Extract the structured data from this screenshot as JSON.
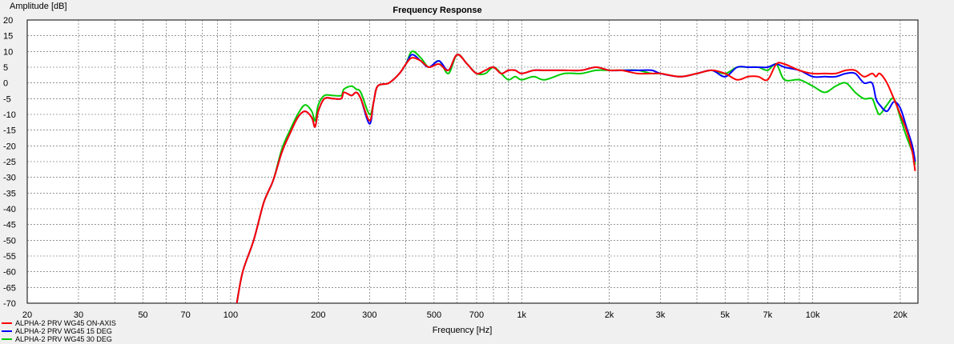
{
  "chart_data": {
    "type": "line",
    "title": "Frequency Response",
    "xlabel": "Frequency [Hz]",
    "ylabel": "Amplitude [dB]",
    "x_scale": "log",
    "xlim": [
      20,
      23000
    ],
    "ylim": [
      -70,
      20
    ],
    "grid": true,
    "legend_position": "bottom-left",
    "x_ticks": [
      {
        "value": 20,
        "label": "20"
      },
      {
        "value": 30,
        "label": "30"
      },
      {
        "value": 50,
        "label": "50"
      },
      {
        "value": 70,
        "label": "70"
      },
      {
        "value": 100,
        "label": "100"
      },
      {
        "value": 200,
        "label": "200"
      },
      {
        "value": 300,
        "label": "300"
      },
      {
        "value": 500,
        "label": "500"
      },
      {
        "value": 700,
        "label": "700"
      },
      {
        "value": 1000,
        "label": "1k"
      },
      {
        "value": 2000,
        "label": "2k"
      },
      {
        "value": 3000,
        "label": "3k"
      },
      {
        "value": 5000,
        "label": "5k"
      },
      {
        "value": 7000,
        "label": "7k"
      },
      {
        "value": 10000,
        "label": "10k"
      },
      {
        "value": 20000,
        "label": "20k"
      }
    ],
    "y_ticks": [
      20,
      15,
      10,
      5,
      0,
      -5,
      -10,
      -15,
      -20,
      -25,
      -30,
      -35,
      -40,
      -45,
      -50,
      -55,
      -60,
      -65,
      -70
    ],
    "series": [
      {
        "name": "ALPHA-2 PRV WG45 ON-AXIS",
        "color": "#ff0000",
        "points": [
          [
            105,
            -70
          ],
          [
            110,
            -60
          ],
          [
            120,
            -50
          ],
          [
            130,
            -38
          ],
          [
            140,
            -31
          ],
          [
            150,
            -22
          ],
          [
            160,
            -16
          ],
          [
            170,
            -11
          ],
          [
            180,
            -9
          ],
          [
            190,
            -11
          ],
          [
            195,
            -14
          ],
          [
            200,
            -9
          ],
          [
            210,
            -5
          ],
          [
            225,
            -5
          ],
          [
            240,
            -5
          ],
          [
            245,
            -3
          ],
          [
            260,
            -4
          ],
          [
            270,
            -3
          ],
          [
            280,
            -5
          ],
          [
            300,
            -12
          ],
          [
            310,
            -6
          ],
          [
            320,
            -1
          ],
          [
            350,
            0
          ],
          [
            380,
            3
          ],
          [
            400,
            6
          ],
          [
            420,
            8
          ],
          [
            450,
            7
          ],
          [
            480,
            5
          ],
          [
            520,
            6
          ],
          [
            560,
            4
          ],
          [
            600,
            9
          ],
          [
            650,
            6
          ],
          [
            700,
            3
          ],
          [
            750,
            4
          ],
          [
            800,
            5
          ],
          [
            850,
            3
          ],
          [
            900,
            4
          ],
          [
            950,
            4
          ],
          [
            1000,
            3
          ],
          [
            1100,
            4
          ],
          [
            1200,
            4
          ],
          [
            1400,
            4
          ],
          [
            1600,
            4
          ],
          [
            1800,
            5
          ],
          [
            2000,
            4
          ],
          [
            2200,
            4
          ],
          [
            2500,
            3
          ],
          [
            2800,
            3
          ],
          [
            3000,
            3
          ],
          [
            3500,
            2
          ],
          [
            4000,
            3
          ],
          [
            4500,
            4
          ],
          [
            5000,
            3
          ],
          [
            5500,
            1
          ],
          [
            6000,
            2
          ],
          [
            6500,
            2
          ],
          [
            7000,
            1
          ],
          [
            7500,
            6
          ],
          [
            8000,
            6
          ],
          [
            9000,
            4
          ],
          [
            10000,
            3
          ],
          [
            11000,
            3
          ],
          [
            12000,
            3
          ],
          [
            13000,
            4
          ],
          [
            14000,
            4
          ],
          [
            15000,
            2
          ],
          [
            16000,
            3
          ],
          [
            16500,
            2
          ],
          [
            17000,
            3
          ],
          [
            18000,
            0
          ],
          [
            19000,
            -5
          ],
          [
            20000,
            -10
          ],
          [
            21000,
            -15
          ],
          [
            22000,
            -22
          ],
          [
            22500,
            -28
          ]
        ]
      },
      {
        "name": "ALPHA-2 PRV WG45 15 DEG",
        "color": "#0000ff",
        "points": [
          [
            105,
            -70
          ],
          [
            110,
            -60
          ],
          [
            120,
            -50
          ],
          [
            130,
            -38
          ],
          [
            140,
            -31
          ],
          [
            150,
            -22
          ],
          [
            160,
            -16
          ],
          [
            170,
            -11
          ],
          [
            180,
            -9
          ],
          [
            190,
            -11
          ],
          [
            195,
            -14
          ],
          [
            200,
            -9
          ],
          [
            210,
            -5
          ],
          [
            225,
            -5
          ],
          [
            240,
            -5
          ],
          [
            245,
            -3
          ],
          [
            260,
            -4
          ],
          [
            270,
            -3
          ],
          [
            280,
            -5
          ],
          [
            300,
            -13
          ],
          [
            310,
            -6
          ],
          [
            320,
            -1
          ],
          [
            350,
            0
          ],
          [
            380,
            3
          ],
          [
            400,
            6
          ],
          [
            420,
            9
          ],
          [
            450,
            7
          ],
          [
            480,
            5
          ],
          [
            520,
            7
          ],
          [
            560,
            4
          ],
          [
            600,
            9
          ],
          [
            650,
            6
          ],
          [
            700,
            3
          ],
          [
            750,
            4
          ],
          [
            800,
            5
          ],
          [
            850,
            3
          ],
          [
            900,
            4
          ],
          [
            950,
            4
          ],
          [
            1000,
            3
          ],
          [
            1100,
            4
          ],
          [
            1200,
            4
          ],
          [
            1400,
            4
          ],
          [
            1600,
            4
          ],
          [
            1800,
            5
          ],
          [
            2000,
            4
          ],
          [
            2200,
            4
          ],
          [
            2500,
            4
          ],
          [
            2800,
            4
          ],
          [
            3000,
            3
          ],
          [
            3500,
            2
          ],
          [
            4000,
            3
          ],
          [
            4500,
            4
          ],
          [
            5000,
            2
          ],
          [
            5500,
            5
          ],
          [
            6000,
            5
          ],
          [
            6500,
            5
          ],
          [
            7000,
            5
          ],
          [
            7500,
            6
          ],
          [
            8000,
            5
          ],
          [
            9000,
            4
          ],
          [
            10000,
            2
          ],
          [
            11000,
            2
          ],
          [
            12000,
            2
          ],
          [
            13000,
            3
          ],
          [
            14000,
            3
          ],
          [
            15000,
            0
          ],
          [
            16000,
            0
          ],
          [
            16500,
            -5
          ],
          [
            17000,
            -7
          ],
          [
            18000,
            -9
          ],
          [
            19000,
            -6
          ],
          [
            20000,
            -8
          ],
          [
            21000,
            -14
          ],
          [
            22000,
            -20
          ],
          [
            22500,
            -25
          ]
        ]
      },
      {
        "name": "ALPHA-2 PRV WG45 30 DEG",
        "color": "#00cc00",
        "points": [
          [
            105,
            -70
          ],
          [
            110,
            -60
          ],
          [
            120,
            -50
          ],
          [
            130,
            -38
          ],
          [
            140,
            -31
          ],
          [
            150,
            -21
          ],
          [
            160,
            -15
          ],
          [
            170,
            -10
          ],
          [
            180,
            -7
          ],
          [
            190,
            -9
          ],
          [
            195,
            -12
          ],
          [
            200,
            -7
          ],
          [
            210,
            -4
          ],
          [
            225,
            -4
          ],
          [
            240,
            -4
          ],
          [
            245,
            -2
          ],
          [
            260,
            -1
          ],
          [
            270,
            -2
          ],
          [
            280,
            -3
          ],
          [
            300,
            -10
          ],
          [
            310,
            -6
          ],
          [
            320,
            -1
          ],
          [
            350,
            0
          ],
          [
            380,
            3
          ],
          [
            400,
            6
          ],
          [
            420,
            10
          ],
          [
            450,
            8
          ],
          [
            480,
            5
          ],
          [
            520,
            7
          ],
          [
            560,
            3
          ],
          [
            600,
            9
          ],
          [
            650,
            6
          ],
          [
            700,
            3
          ],
          [
            750,
            3
          ],
          [
            800,
            5
          ],
          [
            850,
            3
          ],
          [
            900,
            1
          ],
          [
            950,
            2
          ],
          [
            1000,
            1
          ],
          [
            1100,
            2
          ],
          [
            1200,
            1
          ],
          [
            1400,
            3
          ],
          [
            1600,
            3
          ],
          [
            1800,
            4
          ],
          [
            2000,
            4
          ],
          [
            2200,
            4
          ],
          [
            2500,
            4
          ],
          [
            2800,
            3
          ],
          [
            3000,
            3
          ],
          [
            3500,
            2
          ],
          [
            4000,
            3
          ],
          [
            4500,
            4
          ],
          [
            5000,
            3
          ],
          [
            5500,
            5
          ],
          [
            6000,
            5
          ],
          [
            6500,
            5
          ],
          [
            7000,
            4
          ],
          [
            7500,
            6
          ],
          [
            8000,
            1
          ],
          [
            9000,
            1
          ],
          [
            10000,
            -1
          ],
          [
            11000,
            -3
          ],
          [
            12000,
            -1
          ],
          [
            13000,
            0
          ],
          [
            14000,
            -3
          ],
          [
            15000,
            -5
          ],
          [
            16000,
            -5
          ],
          [
            16500,
            -8
          ],
          [
            17000,
            -10
          ],
          [
            18000,
            -7
          ],
          [
            19000,
            -5
          ],
          [
            20000,
            -11
          ],
          [
            21000,
            -17
          ],
          [
            22000,
            -22
          ],
          [
            22500,
            -26
          ]
        ]
      }
    ]
  }
}
